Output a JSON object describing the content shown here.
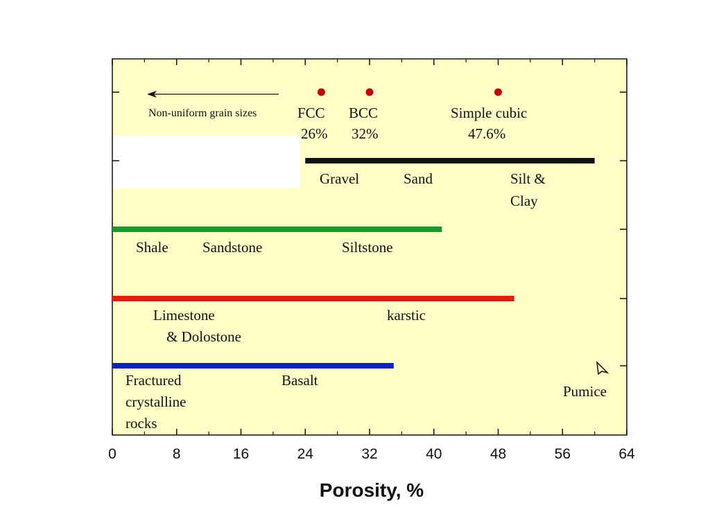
{
  "chart_data": {
    "type": "range-bar",
    "xlabel": "Porosity, %",
    "xlim": [
      0,
      64
    ],
    "xticks": [
      "0",
      "8",
      "16",
      "24",
      "32",
      "40",
      "48",
      "56",
      "64"
    ],
    "colors": {
      "background": "#ffffc8",
      "unconsolidated": "#111111",
      "clastic": "#1a9a2a",
      "carbonate": "#e02010",
      "crystalline": "#1020c8",
      "packing_marker": "#c00000"
    },
    "packing": [
      {
        "name": "FCC",
        "value": 26,
        "label": "26%"
      },
      {
        "name": "BCC",
        "value": 32,
        "label": "32%"
      },
      {
        "name": "Simple cubic",
        "value": 48,
        "label": "47.6%"
      }
    ],
    "note": "Non-uniform grain sizes",
    "series": [
      {
        "key": "unconsolidated",
        "range": [
          24,
          60
        ],
        "labels": [
          "Gravel",
          "Sand",
          "Silt &",
          "Clay"
        ]
      },
      {
        "key": "clastic",
        "range": [
          0,
          41
        ],
        "labels": [
          "Shale",
          "Sandstone",
          "Siltstone"
        ]
      },
      {
        "key": "carbonate",
        "range": [
          0,
          50
        ],
        "labels": [
          "Limestone",
          "& Dolostone",
          "karstic"
        ]
      },
      {
        "key": "crystalline",
        "range": [
          0,
          35
        ],
        "labels": [
          "Fractured",
          "crystalline",
          "rocks",
          "Basalt"
        ]
      }
    ],
    "marker": {
      "label": "Pumice",
      "icon": "arrowhead-icon"
    }
  }
}
